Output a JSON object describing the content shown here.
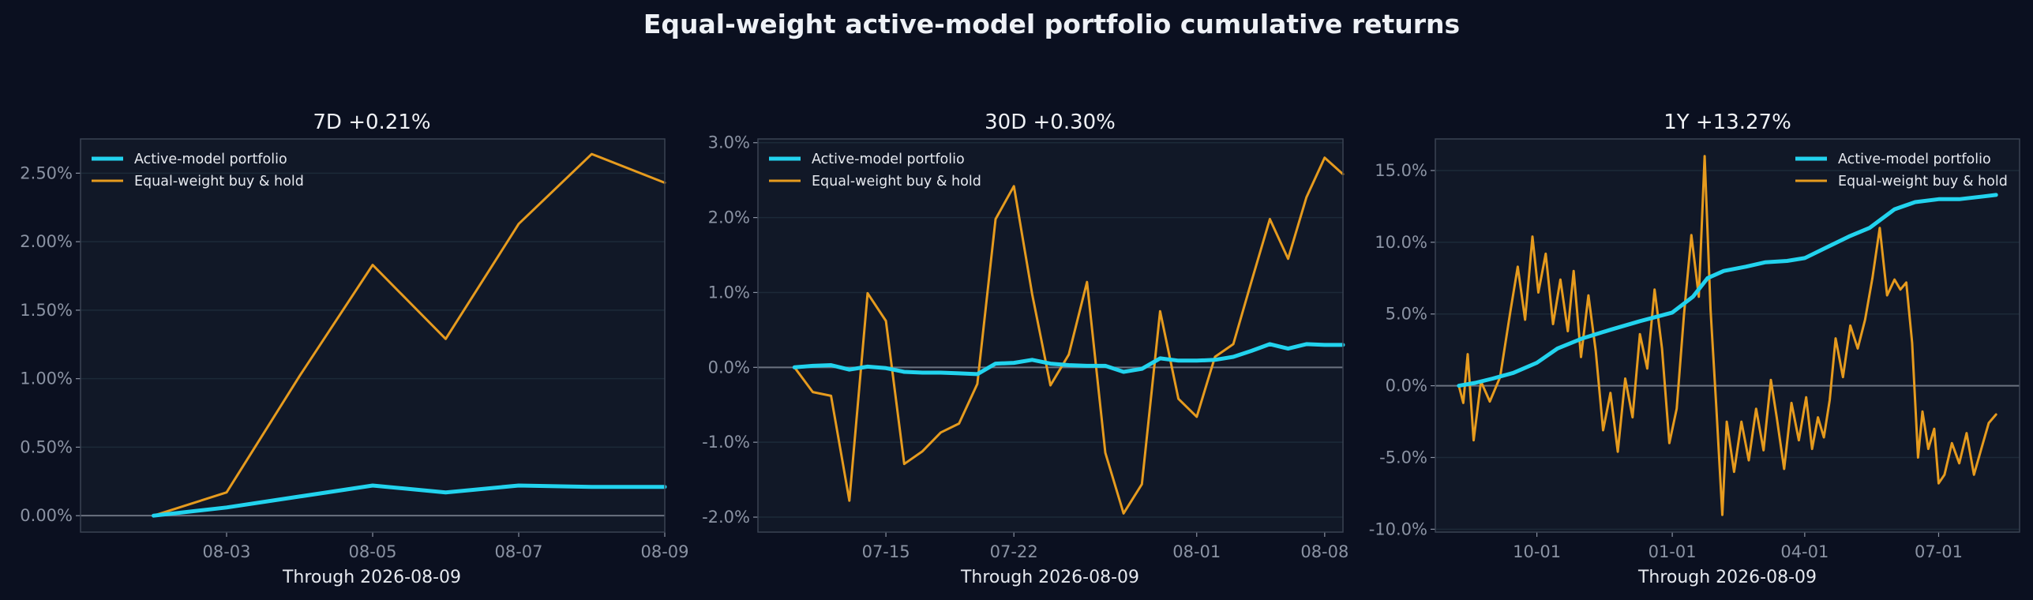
{
  "title": "Equal-weight active-model portfolio cumulative returns",
  "colors": {
    "background": "#0b1020",
    "panel": "#111827",
    "active": "#22d3ee",
    "buyhold": "#e69b1e",
    "grid": "#1c2a38",
    "zero_line": "#6b7280",
    "spine": "#3a4252",
    "tick_text": "#8b93a3"
  },
  "chart_data": [
    {
      "type": "line",
      "title": "7D  +0.21%",
      "xlabel": "Through 2026-08-09",
      "ylabel": "",
      "x_type": "date",
      "xlim": [
        "2026-08-01",
        "2026-08-09"
      ],
      "ylim": [
        -0.12,
        2.75
      ],
      "y_ticks": [
        0,
        0.5,
        1,
        1.5,
        2,
        2.5
      ],
      "y_tick_labels": [
        "0.00%",
        "0.50%",
        "1.00%",
        "1.50%",
        "2.00%",
        "2.50%"
      ],
      "x_ticks": [
        "2026-08-03",
        "2026-08-05",
        "2026-08-07",
        "2026-08-09"
      ],
      "x_tick_labels": [
        "08-03",
        "08-05",
        "08-07",
        "08-09"
      ],
      "grid": true,
      "legend_position": "upper-left",
      "series": [
        {
          "name": "Active-model portfolio",
          "color": "#22d3ee",
          "points": [
            [
              "2026-08-02",
              0.0
            ],
            [
              "2026-08-03",
              0.06
            ],
            [
              "2026-08-04",
              0.14
            ],
            [
              "2026-08-05",
              0.22
            ],
            [
              "2026-08-06",
              0.17
            ],
            [
              "2026-08-07",
              0.22
            ],
            [
              "2026-08-08",
              0.21
            ],
            [
              "2026-08-09",
              0.21
            ]
          ]
        },
        {
          "name": "Equal-weight buy & hold",
          "color": "#e69b1e",
          "points": [
            [
              "2026-08-02",
              0.0
            ],
            [
              "2026-08-03",
              0.17
            ],
            [
              "2026-08-04",
              1.02
            ],
            [
              "2026-08-05",
              1.83
            ],
            [
              "2026-08-06",
              1.29
            ],
            [
              "2026-08-07",
              2.13
            ],
            [
              "2026-08-08",
              2.64
            ],
            [
              "2026-08-09",
              2.43
            ]
          ]
        }
      ]
    },
    {
      "type": "line",
      "title": "30D  +0.30%",
      "xlabel": "Through 2026-08-09",
      "ylabel": "",
      "x_type": "date",
      "xlim": [
        "2026-07-08",
        "2026-08-09"
      ],
      "ylim": [
        -2.2,
        3.05
      ],
      "y_ticks": [
        -2,
        -1,
        0,
        1,
        2,
        3
      ],
      "y_tick_labels": [
        "-2.0%",
        "-1.0%",
        "0.0%",
        "1.0%",
        "2.0%",
        "3.0%"
      ],
      "x_ticks": [
        "2026-07-15",
        "2026-07-22",
        "2026-08-01",
        "2026-08-08"
      ],
      "x_tick_labels": [
        "07-15",
        "07-22",
        "08-01",
        "08-08"
      ],
      "grid": true,
      "legend_position": "upper-left",
      "series": [
        {
          "name": "Active-model portfolio",
          "color": "#22d3ee",
          "points": [
            [
              "2026-07-10",
              0.0
            ],
            [
              "2026-07-11",
              0.02
            ],
            [
              "2026-07-12",
              0.03
            ],
            [
              "2026-07-13",
              -0.03
            ],
            [
              "2026-07-14",
              0.01
            ],
            [
              "2026-07-15",
              -0.01
            ],
            [
              "2026-07-16",
              -0.06
            ],
            [
              "2026-07-17",
              -0.07
            ],
            [
              "2026-07-18",
              -0.07
            ],
            [
              "2026-07-19",
              -0.08
            ],
            [
              "2026-07-20",
              -0.09
            ],
            [
              "2026-07-21",
              0.05
            ],
            [
              "2026-07-22",
              0.06
            ],
            [
              "2026-07-23",
              0.1
            ],
            [
              "2026-07-24",
              0.05
            ],
            [
              "2026-07-25",
              0.03
            ],
            [
              "2026-07-26",
              0.02
            ],
            [
              "2026-07-27",
              0.02
            ],
            [
              "2026-07-28",
              -0.06
            ],
            [
              "2026-07-29",
              -0.02
            ],
            [
              "2026-07-30",
              0.12
            ],
            [
              "2026-07-31",
              0.09
            ],
            [
              "2026-08-01",
              0.09
            ],
            [
              "2026-08-02",
              0.1
            ],
            [
              "2026-08-03",
              0.14
            ],
            [
              "2026-08-04",
              0.22
            ],
            [
              "2026-08-05",
              0.31
            ],
            [
              "2026-08-06",
              0.25
            ],
            [
              "2026-08-07",
              0.31
            ],
            [
              "2026-08-08",
              0.3
            ],
            [
              "2026-08-09",
              0.3
            ]
          ]
        },
        {
          "name": "Equal-weight buy & hold",
          "color": "#e69b1e",
          "points": [
            [
              "2026-07-10",
              0.0
            ],
            [
              "2026-07-11",
              -0.33
            ],
            [
              "2026-07-12",
              -0.38
            ],
            [
              "2026-07-13",
              -1.78
            ],
            [
              "2026-07-14",
              0.99
            ],
            [
              "2026-07-15",
              0.62
            ],
            [
              "2026-07-16",
              -1.29
            ],
            [
              "2026-07-17",
              -1.12
            ],
            [
              "2026-07-18",
              -0.87
            ],
            [
              "2026-07-19",
              -0.75
            ],
            [
              "2026-07-20",
              -0.22
            ],
            [
              "2026-07-21",
              1.98
            ],
            [
              "2026-07-22",
              2.42
            ],
            [
              "2026-07-23",
              0.98
            ],
            [
              "2026-07-24",
              -0.24
            ],
            [
              "2026-07-25",
              0.17
            ],
            [
              "2026-07-26",
              1.14
            ],
            [
              "2026-07-27",
              -1.14
            ],
            [
              "2026-07-28",
              -1.95
            ],
            [
              "2026-07-29",
              -1.56
            ],
            [
              "2026-07-30",
              0.75
            ],
            [
              "2026-07-31",
              -0.42
            ],
            [
              "2026-08-01",
              -0.66
            ],
            [
              "2026-08-02",
              0.14
            ],
            [
              "2026-08-03",
              0.31
            ],
            [
              "2026-08-04",
              1.15
            ],
            [
              "2026-08-05",
              1.98
            ],
            [
              "2026-08-06",
              1.45
            ],
            [
              "2026-08-07",
              2.27
            ],
            [
              "2026-08-08",
              2.8
            ],
            [
              "2026-08-09",
              2.58
            ]
          ]
        }
      ]
    },
    {
      "type": "line",
      "title": "1Y  +13.27%",
      "xlabel": "Through 2026-08-09",
      "ylabel": "",
      "x_type": "date",
      "xlim": [
        "2025-07-24",
        "2026-08-25"
      ],
      "ylim": [
        -10.2,
        17.2
      ],
      "y_ticks": [
        -10,
        -5,
        0,
        5,
        10,
        15
      ],
      "y_tick_labels": [
        "-10.0%",
        "-5.0%",
        "0.0%",
        "5.0%",
        "10.0%",
        "15.0%"
      ],
      "x_ticks": [
        "2025-10-01",
        "2026-01-01",
        "2026-04-01",
        "2026-07-01"
      ],
      "x_tick_labels": [
        "10-01",
        "01-01",
        "04-01",
        "07-01"
      ],
      "grid": true,
      "legend_position": "upper-right",
      "series": [
        {
          "name": "Active-model portfolio",
          "color": "#22d3ee",
          "points": [
            [
              "2025-08-09",
              0.0
            ],
            [
              "2025-08-20",
              0.2
            ],
            [
              "2025-09-01",
              0.5
            ],
            [
              "2025-09-15",
              0.9
            ],
            [
              "2025-10-01",
              1.6
            ],
            [
              "2025-10-15",
              2.6
            ],
            [
              "2025-11-01",
              3.3
            ],
            [
              "2025-11-20",
              3.9
            ],
            [
              "2025-12-10",
              4.5
            ],
            [
              "2026-01-01",
              5.1
            ],
            [
              "2026-01-15",
              6.2
            ],
            [
              "2026-01-25",
              7.5
            ],
            [
              "2026-02-05",
              8.0
            ],
            [
              "2026-02-20",
              8.3
            ],
            [
              "2026-03-05",
              8.6
            ],
            [
              "2026-03-20",
              8.7
            ],
            [
              "2026-04-01",
              8.9
            ],
            [
              "2026-04-15",
              9.6
            ],
            [
              "2026-05-01",
              10.4
            ],
            [
              "2026-05-15",
              11.0
            ],
            [
              "2026-06-01",
              12.3
            ],
            [
              "2026-06-15",
              12.8
            ],
            [
              "2026-07-01",
              13.0
            ],
            [
              "2026-07-15",
              13.0
            ],
            [
              "2026-08-01",
              13.2
            ],
            [
              "2026-08-09",
              13.3
            ]
          ]
        },
        {
          "name": "Equal-weight buy & hold",
          "color": "#e69b1e",
          "points": [
            [
              "2025-08-09",
              0.0
            ],
            [
              "2025-08-12",
              -1.2
            ],
            [
              "2025-08-15",
              2.2
            ],
            [
              "2025-08-19",
              -3.8
            ],
            [
              "2025-08-24",
              0.3
            ],
            [
              "2025-08-30",
              -1.1
            ],
            [
              "2025-09-06",
              0.6
            ],
            [
              "2025-09-13",
              5.2
            ],
            [
              "2025-09-18",
              8.3
            ],
            [
              "2025-09-23",
              4.6
            ],
            [
              "2025-09-28",
              10.4
            ],
            [
              "2025-10-02",
              6.5
            ],
            [
              "2025-10-07",
              9.2
            ],
            [
              "2025-10-12",
              4.3
            ],
            [
              "2025-10-17",
              7.4
            ],
            [
              "2025-10-22",
              3.8
            ],
            [
              "2025-10-26",
              8.0
            ],
            [
              "2025-10-31",
              2.0
            ],
            [
              "2025-11-05",
              6.3
            ],
            [
              "2025-11-10",
              2.4
            ],
            [
              "2025-11-15",
              -3.1
            ],
            [
              "2025-11-20",
              -0.5
            ],
            [
              "2025-11-25",
              -4.6
            ],
            [
              "2025-11-30",
              0.5
            ],
            [
              "2025-12-05",
              -2.2
            ],
            [
              "2025-12-10",
              3.6
            ],
            [
              "2025-12-15",
              1.2
            ],
            [
              "2025-12-20",
              6.7
            ],
            [
              "2025-12-25",
              2.6
            ],
            [
              "2025-12-30",
              -4.0
            ],
            [
              "2026-01-04",
              -1.6
            ],
            [
              "2026-01-09",
              5.0
            ],
            [
              "2026-01-14",
              10.5
            ],
            [
              "2026-01-19",
              6.2
            ],
            [
              "2026-01-23",
              16.0
            ],
            [
              "2026-01-27",
              5.3
            ],
            [
              "2026-01-31",
              -1.6
            ],
            [
              "2026-02-04",
              -9.0
            ],
            [
              "2026-02-07",
              -2.5
            ],
            [
              "2026-02-12",
              -6.0
            ],
            [
              "2026-02-17",
              -2.5
            ],
            [
              "2026-02-22",
              -5.2
            ],
            [
              "2026-02-27",
              -1.6
            ],
            [
              "2026-03-04",
              -4.5
            ],
            [
              "2026-03-09",
              0.4
            ],
            [
              "2026-03-13",
              -2.2
            ],
            [
              "2026-03-18",
              -5.8
            ],
            [
              "2026-03-23",
              -1.2
            ],
            [
              "2026-03-28",
              -3.8
            ],
            [
              "2026-04-02",
              -0.8
            ],
            [
              "2026-04-06",
              -4.4
            ],
            [
              "2026-04-10",
              -2.2
            ],
            [
              "2026-04-14",
              -3.6
            ],
            [
              "2026-04-18",
              -1.0
            ],
            [
              "2026-04-22",
              3.3
            ],
            [
              "2026-04-27",
              0.6
            ],
            [
              "2026-05-02",
              4.2
            ],
            [
              "2026-05-07",
              2.6
            ],
            [
              "2026-05-12",
              4.6
            ],
            [
              "2026-05-17",
              7.5
            ],
            [
              "2026-05-22",
              11.0
            ],
            [
              "2026-05-27",
              6.3
            ],
            [
              "2026-06-01",
              7.4
            ],
            [
              "2026-06-05",
              6.7
            ],
            [
              "2026-06-09",
              7.2
            ],
            [
              "2026-06-13",
              3.0
            ],
            [
              "2026-06-17",
              -5.0
            ],
            [
              "2026-06-20",
              -1.8
            ],
            [
              "2026-06-24",
              -4.4
            ],
            [
              "2026-06-28",
              -3.0
            ],
            [
              "2026-07-01",
              -6.8
            ],
            [
              "2026-07-05",
              -6.2
            ],
            [
              "2026-07-10",
              -4.0
            ],
            [
              "2026-07-15",
              -5.4
            ],
            [
              "2026-07-20",
              -3.3
            ],
            [
              "2026-07-25",
              -6.2
            ],
            [
              "2026-07-30",
              -4.4
            ],
            [
              "2026-08-04",
              -2.6
            ],
            [
              "2026-08-09",
              -2.0
            ]
          ]
        }
      ]
    }
  ]
}
